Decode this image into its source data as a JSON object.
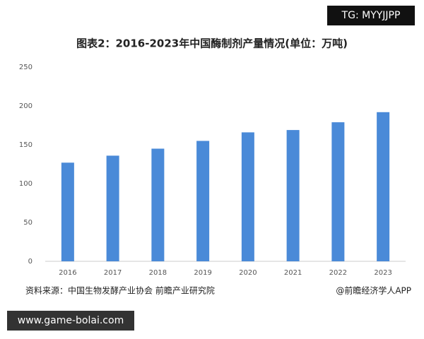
{
  "chart_data": {
    "type": "bar",
    "title": "图表2：2016-2023年中国酶制剂产量情况(单位：万吨)",
    "categories": [
      "2016",
      "2017",
      "2018",
      "2019",
      "2020",
      "2021",
      "2022",
      "2023"
    ],
    "values": [
      127,
      136,
      145,
      155,
      166,
      169,
      179,
      192
    ],
    "color": "#4a8ad8",
    "ylim": [
      0,
      250
    ],
    "yticks": [
      0,
      50,
      100,
      150,
      200,
      250
    ],
    "grid": false
  },
  "source": "资料来源：中国生物发酵产业协会 前瞻产业研究院",
  "credit": "@前瞻经济学人APP",
  "overlays": {
    "top_right": "TG: MYYJJPP",
    "bottom_left": "www.game-bolai.com"
  }
}
